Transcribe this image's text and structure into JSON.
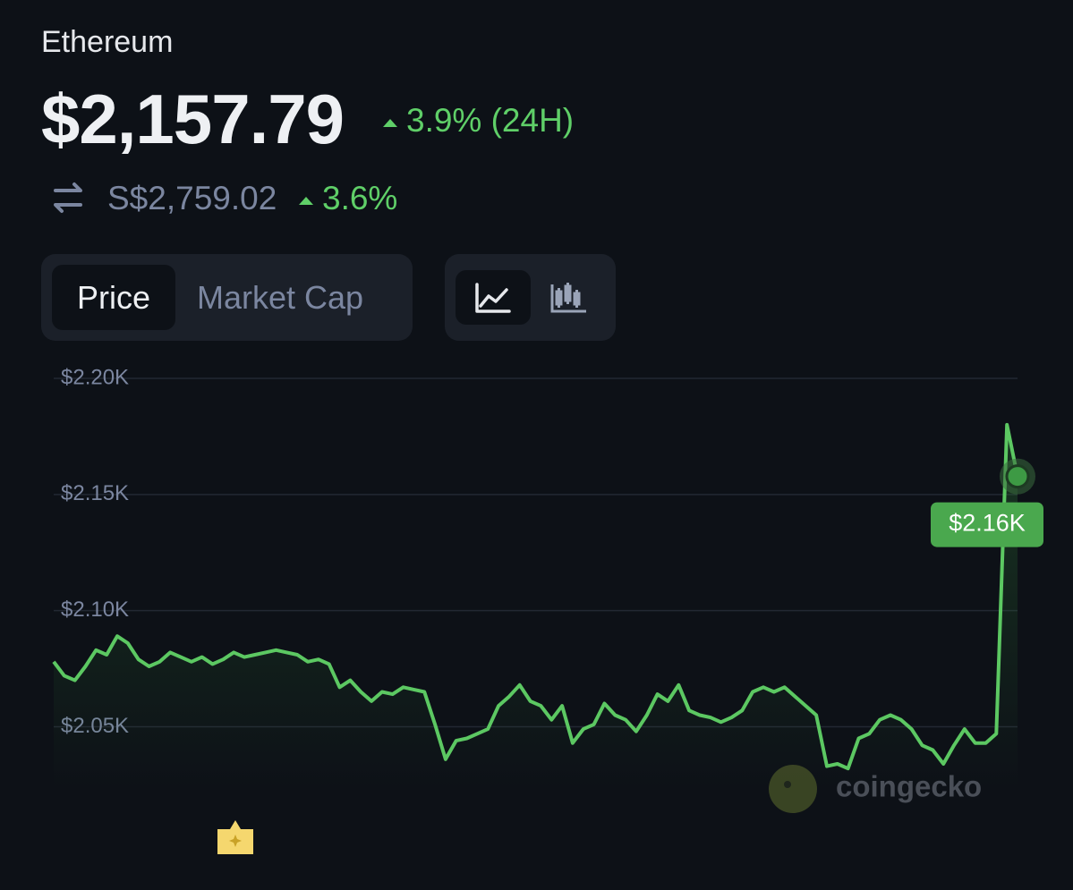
{
  "header": {
    "name": "Ethereum",
    "price": "$2,157.79",
    "change_24h": "3.9% (24H)",
    "alt_price": "S$2,759.02",
    "alt_change": "3.6%"
  },
  "tabs": [
    "Price",
    "Market Cap"
  ],
  "watermark": "coingecko",
  "chart_data": {
    "type": "line",
    "color": "#5cc862",
    "values": [
      2078,
      2072,
      2070,
      2076,
      2083,
      2081,
      2089,
      2086,
      2079,
      2076,
      2078,
      2082,
      2080,
      2078,
      2080,
      2077,
      2079,
      2082,
      2080,
      2081,
      2082,
      2083,
      2082,
      2081,
      2078,
      2079,
      2077,
      2067,
      2070,
      2065,
      2061,
      2065,
      2064,
      2067,
      2066,
      2065,
      2051,
      2036,
      2044,
      2045,
      2047,
      2049,
      2059,
      2063,
      2068,
      2061,
      2059,
      2053,
      2059,
      2043,
      2049,
      2051,
      2060,
      2055,
      2053,
      2048,
      2055,
      2064,
      2061,
      2068,
      2057,
      2055,
      2054,
      2052,
      2054,
      2057,
      2065,
      2067,
      2065,
      2067,
      2063,
      2059,
      2055,
      2033,
      2034,
      2032,
      2045,
      2047,
      2053,
      2055,
      2053,
      2049,
      2042,
      2040,
      2034,
      2042,
      2049,
      2043,
      2043,
      2047,
      2180,
      2157.79
    ],
    "ylim": [
      2024,
      2200
    ],
    "yticks": [
      {
        "value": 2200,
        "label": "$2.20K"
      },
      {
        "value": 2150,
        "label": "$2.15K"
      },
      {
        "value": 2100,
        "label": "$2.10K"
      },
      {
        "value": 2050,
        "label": "$2.05K"
      }
    ],
    "grid": true,
    "current": {
      "value": 2157.79,
      "label": "$2.16K"
    }
  }
}
